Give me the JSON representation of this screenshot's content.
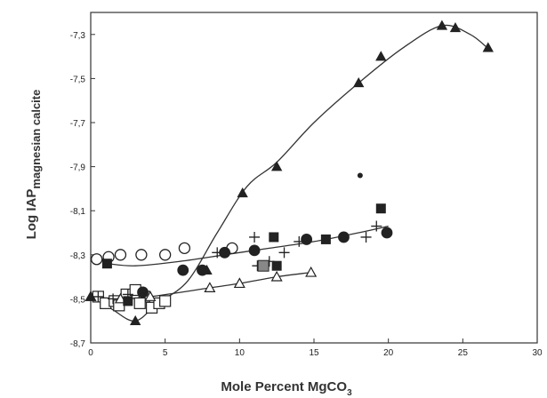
{
  "chart_data": {
    "type": "scatter",
    "xlabel": "Mole Percent MgCO",
    "xlabel_sub": "3",
    "ylabel": "Log IAP",
    "ylabel_sub": "magnesian calcite",
    "xlim": [
      0,
      30
    ],
    "ylim": [
      -8.7,
      -7.2
    ],
    "x_ticks": [
      0,
      5,
      10,
      15,
      20,
      25,
      30
    ],
    "x_tick_labels": [
      "0",
      "5",
      "10",
      "15",
      "20",
      "25",
      "30"
    ],
    "y_ticks": [
      -8.7,
      -8.5,
      -8.3,
      -8.1,
      -7.9,
      -7.7,
      -7.5,
      -7.3
    ],
    "y_tick_labels": [
      "-8,7",
      "-8,5",
      "-8,3",
      "-8,1",
      "-7,9",
      "-7,7",
      "-7,5",
      "-7,3"
    ],
    "grid": false,
    "series": [
      {
        "marker": "filled-triangle",
        "points": [
          [
            0,
            -8.49
          ],
          [
            3,
            -8.6
          ],
          [
            7.8,
            -8.37
          ],
          [
            10.2,
            -8.02
          ],
          [
            12.5,
            -7.9
          ],
          [
            18,
            -7.52
          ],
          [
            19.5,
            -7.4
          ],
          [
            23.6,
            -7.26
          ],
          [
            24.5,
            -7.27
          ],
          [
            26.7,
            -7.36
          ]
        ],
        "curve": [
          [
            0,
            -8.48
          ],
          [
            1.5,
            -8.55
          ],
          [
            3,
            -8.6
          ],
          [
            4.5,
            -8.52
          ],
          [
            6.5,
            -8.42
          ],
          [
            8.5,
            -8.2
          ],
          [
            10.5,
            -7.99
          ],
          [
            12.5,
            -7.88
          ],
          [
            15,
            -7.7
          ],
          [
            18,
            -7.52
          ],
          [
            21,
            -7.36
          ],
          [
            23.6,
            -7.26
          ],
          [
            25.5,
            -7.3
          ],
          [
            26.8,
            -7.37
          ]
        ]
      },
      {
        "marker": "open-triangle",
        "points": [
          [
            0,
            -8.49
          ],
          [
            2,
            -8.5
          ],
          [
            4,
            -8.49
          ],
          [
            8,
            -8.45
          ],
          [
            10,
            -8.43
          ],
          [
            12.5,
            -8.4
          ],
          [
            14.8,
            -8.38
          ]
        ],
        "curve": [
          [
            0,
            -8.49
          ],
          [
            2,
            -8.5
          ],
          [
            4,
            -8.49
          ],
          [
            8,
            -8.45
          ],
          [
            10,
            -8.43
          ],
          [
            12.5,
            -8.4
          ],
          [
            14.8,
            -8.38
          ]
        ]
      },
      {
        "marker": "open-circle",
        "points": [
          [
            0.4,
            -8.32
          ],
          [
            1.2,
            -8.31
          ],
          [
            2,
            -8.3
          ],
          [
            3.4,
            -8.3
          ],
          [
            5,
            -8.3
          ],
          [
            6.3,
            -8.27
          ],
          [
            9.5,
            -8.27
          ]
        ]
      },
      {
        "marker": "filled-circle",
        "points": [
          [
            3.5,
            -8.47
          ],
          [
            6.2,
            -8.37
          ],
          [
            7.5,
            -8.37
          ],
          [
            9,
            -8.29
          ],
          [
            11,
            -8.28
          ],
          [
            14.5,
            -8.23
          ],
          [
            17,
            -8.22
          ],
          [
            18.1,
            -7.94
          ],
          [
            19.9,
            -8.2
          ]
        ]
      },
      {
        "marker": "plus",
        "points": [
          [
            0.5,
            -8.49
          ],
          [
            1.5,
            -8.5
          ],
          [
            2.5,
            -8.48
          ],
          [
            8.5,
            -8.29
          ],
          [
            11,
            -8.22
          ],
          [
            11.2,
            -8.35
          ],
          [
            12,
            -8.33
          ],
          [
            13,
            -8.29
          ],
          [
            14,
            -8.24
          ],
          [
            18.5,
            -8.22
          ],
          [
            19.2,
            -8.17
          ]
        ]
      },
      {
        "marker": "filled-square",
        "points": [
          [
            1.1,
            -8.34
          ],
          [
            2.5,
            -8.51
          ],
          [
            12.3,
            -8.22
          ],
          [
            12.5,
            -8.35
          ],
          [
            15.8,
            -8.23
          ],
          [
            19.5,
            -8.09
          ]
        ]
      },
      {
        "marker": "gray-square",
        "points": [
          [
            11.6,
            -8.35
          ]
        ]
      },
      {
        "marker": "open-square",
        "points": [
          [
            0.5,
            -8.49
          ],
          [
            1,
            -8.52
          ],
          [
            1.6,
            -8.51
          ],
          [
            2.4,
            -8.48
          ],
          [
            3,
            -8.46
          ],
          [
            3.6,
            -8.49
          ],
          [
            4.1,
            -8.54
          ],
          [
            4.6,
            -8.52
          ],
          [
            5,
            -8.51
          ],
          [
            1.9,
            -8.53
          ],
          [
            3.3,
            -8.52
          ]
        ]
      }
    ],
    "trend_curve": [
      [
        1.1,
        -8.34
      ],
      [
        3,
        -8.35
      ],
      [
        6,
        -8.33
      ],
      [
        9,
        -8.3
      ],
      [
        12,
        -8.27
      ],
      [
        15,
        -8.24
      ],
      [
        18,
        -8.2
      ],
      [
        20,
        -8.17
      ]
    ]
  }
}
